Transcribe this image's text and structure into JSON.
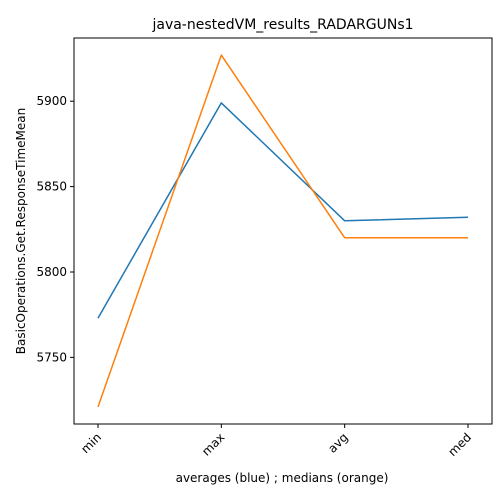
{
  "chart_data": {
    "type": "line",
    "title": "java-nestedVM_results_RADARGUNs1",
    "xlabel": "averages (blue) ; medians (orange)",
    "ylabel": "BasicOperations.Get.ResponseTimeMean",
    "categories": [
      "min",
      "max",
      "avg",
      "med"
    ],
    "series": [
      {
        "color": "#1f77b4",
        "values": [
          5773,
          5899,
          5830,
          5832
        ]
      },
      {
        "color": "#ff7f0e",
        "values": [
          5721,
          5927,
          5820,
          5820
        ]
      }
    ],
    "yticks": [
      5750,
      5800,
      5850,
      5900
    ],
    "ylim": [
      5711,
      5937
    ],
    "grid": false
  }
}
